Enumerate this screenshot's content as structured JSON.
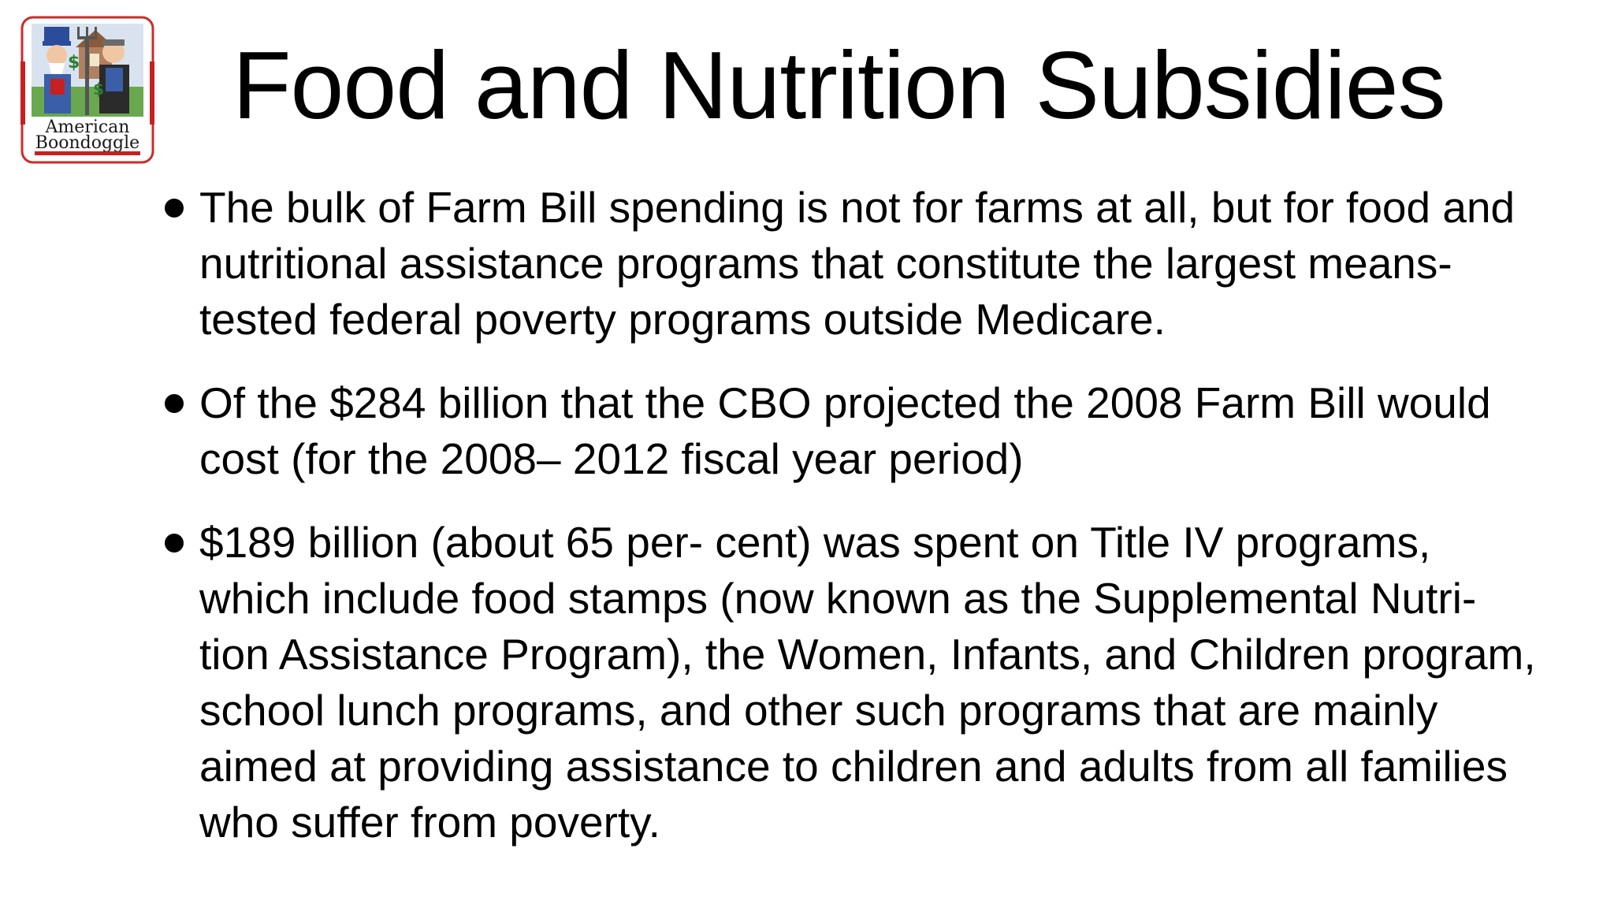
{
  "slide": {
    "title": "Food and Nutrition Subsidies",
    "logo": {
      "text_line1": "American",
      "text_line2": "Boondoggle",
      "icon": "american-boondoggle-logo-icon"
    },
    "bullets": [
      {
        "text": "The bulk of Farm Bill spending is not for farms at all, but for food and nutritional assistance programs that constitute the largest means-tested federal poverty programs outside Medicare."
      },
      {
        "text": "Of the $284 billion that the CBO projected the 2008 Farm Bill would cost (for the 2008– 2012 fiscal year period)"
      },
      {
        "text": "$189 billion (about 65 per- cent) was spent on Title IV programs, which include food stamps (now known as the Supplemental Nutri- tion Assistance Program), the Women, Infants, and Children program, school lunch programs, and other such programs that are mainly aimed at providing assistance to children and adults from all families who suffer from poverty."
      }
    ]
  }
}
